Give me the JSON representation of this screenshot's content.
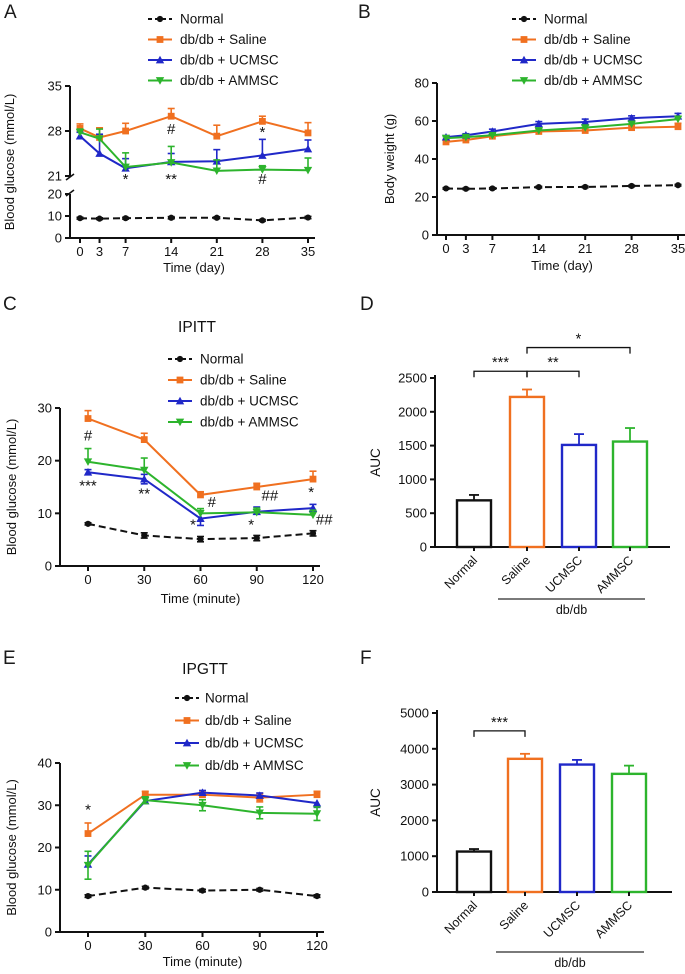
{
  "figure": {
    "panel_labels": [
      "A",
      "B",
      "C",
      "D",
      "E",
      "F"
    ]
  },
  "colors": {
    "normal": "#111111",
    "saline": "#F07020",
    "ucmsc": "#2028C8",
    "ammsc": "#2DB42D"
  },
  "chart_data": [
    {
      "id": "A",
      "type": "line",
      "title": "",
      "xlabel": "Time (day)",
      "ylabel": "Blood glucose (mmol/L)",
      "x": [
        0,
        3,
        7,
        14,
        21,
        28,
        35
      ],
      "x_ticks": [
        0,
        3,
        7,
        14,
        21,
        28,
        35
      ],
      "y_axis": {
        "broken": true,
        "lower_ticks": [
          0,
          10,
          20
        ],
        "upper_ticks": [
          21,
          28,
          35
        ],
        "lower_range": [
          0,
          20
        ],
        "upper_range": [
          21,
          35
        ]
      },
      "series": [
        {
          "name": "Normal",
          "color": "#111111",
          "dash": true,
          "marker": "circle",
          "err_dir": "both",
          "values": [
            9,
            8.8,
            9,
            9.2,
            9.2,
            8,
            9.3
          ],
          "err": [
            0.4,
            0.4,
            0.4,
            0.5,
            0.4,
            0.4,
            0.5
          ]
        },
        {
          "name": "db/db + Saline",
          "color": "#F07020",
          "marker": "square",
          "err_dir": "up",
          "values": [
            28.4,
            27,
            28,
            30.3,
            27.2,
            29.5,
            27.7
          ],
          "err": [
            0.7,
            1.5,
            1.2,
            1.2,
            1.7,
            0.8,
            1.6
          ]
        },
        {
          "name": "db/db + UCMSC",
          "color": "#2028C8",
          "marker": "triangle",
          "err_dir": "up",
          "values": [
            27.2,
            24.5,
            22.2,
            23.2,
            23.3,
            24.2,
            25.2
          ],
          "err": [
            0.6,
            3.0,
            1.5,
            1.3,
            1.8,
            2.5,
            1.4
          ]
        },
        {
          "name": "db/db + AMMSC",
          "color": "#2DB42D",
          "marker": "triangle-down",
          "err_dir": "up",
          "values": [
            27.8,
            26.8,
            22.4,
            23.1,
            21.8,
            22.0,
            21.9
          ],
          "err": [
            0.5,
            1.5,
            2.2,
            2.5,
            1.7,
            0.6,
            1.9
          ]
        }
      ],
      "annotations": [
        {
          "text": "*",
          "x": 7,
          "y": 20.55
        },
        {
          "text": "#",
          "x": 14,
          "y": 27.5
        },
        {
          "text": "**",
          "x": 14,
          "y": 20.55
        },
        {
          "text": "*",
          "x": 28,
          "y": 27.1
        },
        {
          "text": "#",
          "x": 28,
          "y": 20.55
        }
      ],
      "legend_position": "top"
    },
    {
      "id": "B",
      "type": "line",
      "title": "",
      "xlabel": "Time (day)",
      "ylabel": "Body weight (g)",
      "x": [
        0,
        3,
        7,
        14,
        21,
        28,
        35
      ],
      "x_ticks": [
        0,
        3,
        7,
        14,
        21,
        28,
        35
      ],
      "y_axis": {
        "broken": false
      },
      "ylim": [
        0,
        80
      ],
      "y_ticks": [
        0,
        20,
        40,
        60,
        80
      ],
      "series": [
        {
          "name": "Normal",
          "color": "#111111",
          "dash": true,
          "marker": "circle",
          "err_dir": "both",
          "values": [
            24.5,
            24.3,
            24.5,
            25.2,
            25.3,
            25.8,
            26.2
          ],
          "err": [
            0.4,
            0.4,
            0.4,
            0.4,
            0.4,
            0.4,
            0.4
          ]
        },
        {
          "name": "db/db + Saline",
          "color": "#F07020",
          "marker": "square",
          "err_dir": "up",
          "values": [
            49,
            50,
            52,
            54.5,
            55,
            56.5,
            57
          ],
          "err": [
            1.0,
            1.0,
            1.2,
            1.5,
            1.5,
            1.5,
            1.8
          ]
        },
        {
          "name": "db/db + UCMSC",
          "color": "#2028C8",
          "marker": "triangle",
          "err_dir": "up",
          "values": [
            51.5,
            52.5,
            54.5,
            58.5,
            59.5,
            61.5,
            62.5
          ],
          "err": [
            0.8,
            0.8,
            1.2,
            1.2,
            1.5,
            1.2,
            1.5
          ]
        },
        {
          "name": "db/db + AMMSC",
          "color": "#2DB42D",
          "marker": "triangle-down",
          "err_dir": "up",
          "values": [
            51,
            51.5,
            52.5,
            55,
            56.5,
            58.5,
            61
          ],
          "err": [
            0.8,
            0.8,
            1.0,
            1.2,
            1.2,
            1.2,
            1.5
          ]
        }
      ],
      "annotations": [],
      "legend_position": "top"
    },
    {
      "id": "C",
      "type": "line",
      "title": "IPITT",
      "xlabel": "Time (minute)",
      "ylabel": "Blood glucose (mmol/L)",
      "x": [
        0,
        30,
        60,
        90,
        120
      ],
      "x_ticks": [
        0,
        30,
        60,
        90,
        120
      ],
      "y_axis": {
        "broken": false
      },
      "ylim": [
        0,
        30
      ],
      "y_ticks": [
        0,
        10,
        20,
        30
      ],
      "series": [
        {
          "name": "Normal",
          "color": "#111111",
          "dash": true,
          "marker": "circle",
          "err_dir": "both",
          "values": [
            8,
            5.8,
            5.1,
            5.3,
            6.2
          ],
          "err": [
            0.2,
            0.5,
            0.5,
            0.5,
            0.5
          ]
        },
        {
          "name": "db/db + Saline",
          "color": "#F07020",
          "marker": "square",
          "err_dir": "up",
          "values": [
            28,
            24,
            13.5,
            15,
            16.5
          ],
          "err": [
            1.5,
            1.2,
            0.6,
            0.7,
            1.5
          ]
        },
        {
          "name": "db/db + UCMSC",
          "color": "#2028C8",
          "marker": "triangle",
          "err_dir": [
            "up",
            "both",
            "down",
            "up",
            "up"
          ],
          "values": [
            17.8,
            16.5,
            9,
            10.3,
            11
          ],
          "err": [
            0.5,
            0.9,
            1.3,
            0.9,
            0.7
          ]
        },
        {
          "name": "db/db + AMMSC",
          "color": "#2DB42D",
          "marker": "triangle-down",
          "err_dir": "up",
          "values": [
            19.8,
            18.2,
            10,
            10.2,
            9.7
          ],
          "err": [
            2.5,
            2.3,
            0.9,
            0.8,
            0.9
          ]
        }
      ],
      "annotations": [
        {
          "text": "#",
          "x": 0,
          "y": 23.8
        },
        {
          "text": "***",
          "x": 0,
          "y": 14.3
        },
        {
          "text": "**",
          "x": 30,
          "y": 12.8
        },
        {
          "text": "*",
          "x": 56,
          "y": 6.9
        },
        {
          "text": "#",
          "x": 66,
          "y": 11.2
        },
        {
          "text": "*",
          "x": 87,
          "y": 6.9
        },
        {
          "text": "##",
          "x": 97,
          "y": 12.4
        },
        {
          "text": "*",
          "x": 119,
          "y": 13.1
        },
        {
          "text": "##",
          "x": 126,
          "y": 7.9
        }
      ],
      "legend_position": "top"
    },
    {
      "id": "D",
      "type": "bar",
      "title": "",
      "ylabel": "AUC",
      "categories": [
        "Normal",
        "Saline",
        "UCMSC",
        "AMMSC"
      ],
      "values": [
        690,
        2220,
        1510,
        1560
      ],
      "errors": [
        80,
        110,
        160,
        200
      ],
      "bar_colors": [
        "#111111",
        "#F07020",
        "#2028C8",
        "#2DB42D"
      ],
      "ylim": [
        0,
        2500
      ],
      "y_ticks": [
        0,
        500,
        1000,
        1500,
        2000,
        2500
      ],
      "brackets": [
        {
          "from": 0,
          "to": 1,
          "y": 2600,
          "label": "***"
        },
        {
          "from": 1,
          "to": 2,
          "y": 2600,
          "label": "**"
        },
        {
          "from": 1,
          "to": 3,
          "y": 2950,
          "label": "*"
        }
      ],
      "group": {
        "label": "db/db",
        "from": 1,
        "to": 3
      }
    },
    {
      "id": "E",
      "type": "line",
      "title": "IPGTT",
      "xlabel": "Time (minute)",
      "ylabel": "Blood glucose (mmol/L)",
      "x": [
        0,
        30,
        60,
        90,
        120
      ],
      "x_ticks": [
        0,
        30,
        60,
        90,
        120
      ],
      "y_axis": {
        "broken": false
      },
      "ylim": [
        0,
        40
      ],
      "y_ticks": [
        0,
        10,
        20,
        30,
        40
      ],
      "series": [
        {
          "name": "Normal",
          "color": "#111111",
          "dash": true,
          "marker": "circle",
          "err_dir": "both",
          "values": [
            8.5,
            10.5,
            9.8,
            10,
            8.5
          ],
          "err": [
            0.3,
            0.3,
            0.3,
            0.3,
            0.3
          ]
        },
        {
          "name": "db/db + Saline",
          "color": "#F07020",
          "marker": "square",
          "err_dir": [
            "up",
            "up",
            "up",
            "both",
            "up"
          ],
          "values": [
            23.3,
            32.5,
            32.5,
            31.8,
            32.5
          ],
          "err": [
            2.5,
            0.8,
            0.6,
            1.0,
            0.8
          ]
        },
        {
          "name": "db/db + UCMSC",
          "color": "#2028C8",
          "marker": "triangle",
          "err_dir": [
            "up",
            "up",
            "up",
            "up",
            "down"
          ],
          "values": [
            16,
            31,
            33,
            32.3,
            30.5
          ],
          "err": [
            2.0,
            0.8,
            0.5,
            0.6,
            1.0
          ]
        },
        {
          "name": "db/db + AMMSC",
          "color": "#2DB42D",
          "marker": "triangle-down",
          "err_dir": "both",
          "values": [
            15.8,
            31.2,
            30,
            28.2,
            28
          ],
          "err": [
            3.3,
            0.8,
            1.3,
            1.4,
            1.6
          ]
        }
      ],
      "annotations": [
        {
          "text": "*",
          "x": 0,
          "y": 27.8
        }
      ],
      "legend_position": "top"
    },
    {
      "id": "F",
      "type": "bar",
      "title": "",
      "ylabel": "AUC",
      "categories": [
        "Normal",
        "Saline",
        "UCMSC",
        "AMMSC"
      ],
      "values": [
        1130,
        3720,
        3560,
        3300
      ],
      "errors": [
        70,
        140,
        130,
        230
      ],
      "bar_colors": [
        "#111111",
        "#F07020",
        "#2028C8",
        "#2DB42D"
      ],
      "ylim": [
        0,
        5000
      ],
      "y_ticks": [
        0,
        1000,
        2000,
        3000,
        4000,
        5000
      ],
      "brackets": [
        {
          "from": 0,
          "to": 1,
          "y": 4500,
          "label": "***"
        }
      ],
      "group": {
        "label": "db/db",
        "from": 1,
        "to": 3
      }
    }
  ]
}
